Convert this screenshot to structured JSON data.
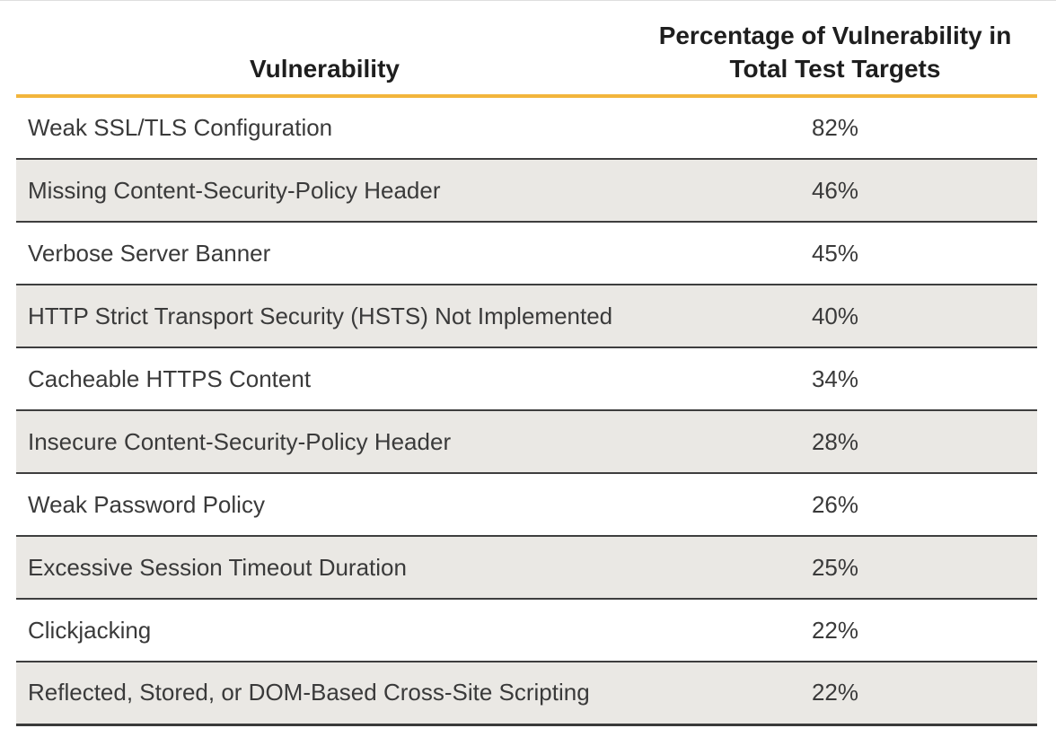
{
  "table": {
    "columns": [
      {
        "label": "Vulnerability"
      },
      {
        "label": "Percentage of Vulnerability in Total Test Targets",
        "line1": "Percentage of Vulnerability in",
        "line2": "Total Test Targets"
      }
    ],
    "rows": [
      {
        "vulnerability": "Weak SSL/TLS Configuration",
        "percentage": "82%"
      },
      {
        "vulnerability": "Missing Content-Security-Policy Header",
        "percentage": "46%"
      },
      {
        "vulnerability": "Verbose Server Banner",
        "percentage": "45%"
      },
      {
        "vulnerability": "HTTP Strict Transport Security (HSTS) Not Implemented",
        "percentage": "40%"
      },
      {
        "vulnerability": "Cacheable HTTPS Content",
        "percentage": "34%"
      },
      {
        "vulnerability": "Insecure Content-Security-Policy Header",
        "percentage": "28%"
      },
      {
        "vulnerability": "Weak Password Policy",
        "percentage": "26%"
      },
      {
        "vulnerability": "Excessive Session Timeout Duration",
        "percentage": "25%"
      },
      {
        "vulnerability": "Clickjacking",
        "percentage": "22%"
      },
      {
        "vulnerability": "Reflected, Stored, or DOM-Based Cross-Site Scripting",
        "percentage": "22%"
      }
    ]
  },
  "colors": {
    "accent_rule": "#F2B53C",
    "alt_row_bg": "#EAE8E4",
    "row_border": "#3E3E3E",
    "body_text": "#3A3A3A",
    "header_text": "#1E1E1E"
  },
  "chart_data": {
    "type": "table",
    "title": "",
    "columns": [
      "Vulnerability",
      "Percentage of Vulnerability in Total Test Targets"
    ],
    "categories": [
      "Weak SSL/TLS Configuration",
      "Missing Content-Security-Policy Header",
      "Verbose Server Banner",
      "HTTP Strict Transport Security (HSTS) Not Implemented",
      "Cacheable HTTPS Content",
      "Insecure Content-Security-Policy Header",
      "Weak Password Policy",
      "Excessive Session Timeout Duration",
      "Clickjacking",
      "Reflected, Stored, or DOM-Based Cross-Site Scripting"
    ],
    "values": [
      82,
      46,
      45,
      40,
      34,
      28,
      26,
      25,
      22,
      22
    ],
    "unit": "%"
  }
}
